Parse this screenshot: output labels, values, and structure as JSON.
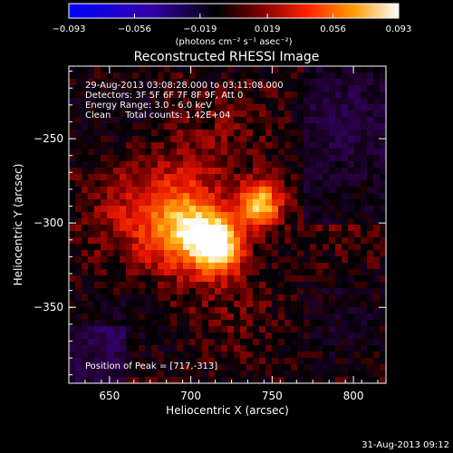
{
  "colorbar": {
    "ticks": [
      "-0.093",
      "-0.056",
      "-0.019",
      "0.019",
      "0.056",
      "0.093"
    ],
    "unit_label": "(photons cm⁻² s⁻¹ asec⁻²)",
    "range": [
      -0.093,
      0.093
    ]
  },
  "chart_data": {
    "type": "heatmap",
    "title": "Reconstructed RHESSI Image",
    "xlabel": "Heliocentric X (arcsec)",
    "ylabel": "Heliocentric Y (arcsec)",
    "xlim": [
      625,
      820
    ],
    "ylim": [
      -395,
      -207
    ],
    "xticks": [
      "650",
      "700",
      "750",
      "800"
    ],
    "yticks": [
      "-250",
      "-300",
      "-350"
    ],
    "annotations": [
      "29-Aug-2013 03:08:28.000 to 03:11:08.000",
      "Detectors: 3F 5F 6F 7F 8F 9F, Att 0",
      "Energy Range: 3.0 - 6.0 keV",
      "Clean     Total counts: 1.42E+04"
    ],
    "peak_label": "Position of Peak = [717,-313]",
    "sources": [
      {
        "x": 716,
        "y": -313,
        "amp": 0.093,
        "sigma": 11
      },
      {
        "x": 742,
        "y": -289,
        "amp": 0.082,
        "sigma": 9
      },
      {
        "x": 698,
        "y": -303,
        "amp": 0.055,
        "sigma": 14
      },
      {
        "x": 690,
        "y": -292,
        "amp": 0.03,
        "sigma": 28
      }
    ]
  },
  "footer_timestamp": "31-Aug-2013 09:12"
}
